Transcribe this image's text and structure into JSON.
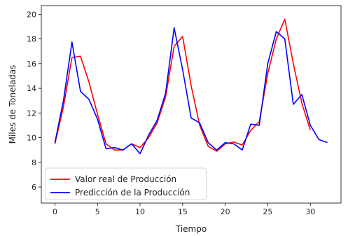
{
  "chart_data": {
    "type": "line",
    "title": "",
    "xlabel": "Tiempo",
    "ylabel": "Miles de Toneladas",
    "xlim": [
      -1.6,
      33.6
    ],
    "ylim": [
      4.7,
      20.7
    ],
    "xticks": [
      0,
      5,
      10,
      15,
      20,
      25,
      30
    ],
    "yticks": [
      6,
      8,
      10,
      12,
      14,
      16,
      18,
      20
    ],
    "grid": false,
    "legend_position": "lower-left",
    "series": [
      {
        "name": "Valor real de Producción",
        "color": "#ff0000",
        "x": [
          0,
          1,
          2,
          3,
          4,
          5,
          6,
          7,
          8,
          9,
          10,
          11,
          12,
          13,
          14,
          15,
          16,
          17,
          18,
          19,
          20,
          21,
          22,
          23,
          24,
          25,
          26,
          27,
          28,
          29,
          30
        ],
        "y": [
          9.5,
          12.5,
          16.5,
          16.6,
          14.5,
          11.9,
          9.5,
          9.0,
          9.0,
          9.5,
          9.2,
          10.0,
          11.2,
          13.3,
          17.4,
          18.2,
          14.2,
          11.0,
          9.3,
          8.9,
          9.5,
          9.65,
          9.4,
          10.6,
          11.3,
          15.2,
          18.0,
          19.6,
          16.0,
          12.8,
          10.6
        ]
      },
      {
        "name": "Predicción de la Producción",
        "color": "#0000ff",
        "x": [
          0,
          1,
          2,
          3,
          4,
          5,
          6,
          7,
          8,
          9,
          10,
          11,
          12,
          13,
          14,
          15,
          16,
          17,
          18,
          19,
          20,
          21,
          22,
          23,
          24,
          25,
          26,
          27,
          28,
          29,
          30,
          31,
          32
        ],
        "y": [
          9.6,
          13.0,
          17.75,
          13.75,
          13.1,
          11.5,
          9.1,
          9.2,
          9.0,
          9.5,
          8.7,
          10.2,
          11.4,
          13.6,
          18.9,
          15.5,
          11.6,
          11.2,
          9.6,
          9.0,
          9.6,
          9.5,
          9.0,
          11.1,
          11.0,
          16.0,
          18.6,
          18.0,
          12.7,
          13.5,
          11.0,
          9.85,
          9.6
        ]
      }
    ]
  }
}
